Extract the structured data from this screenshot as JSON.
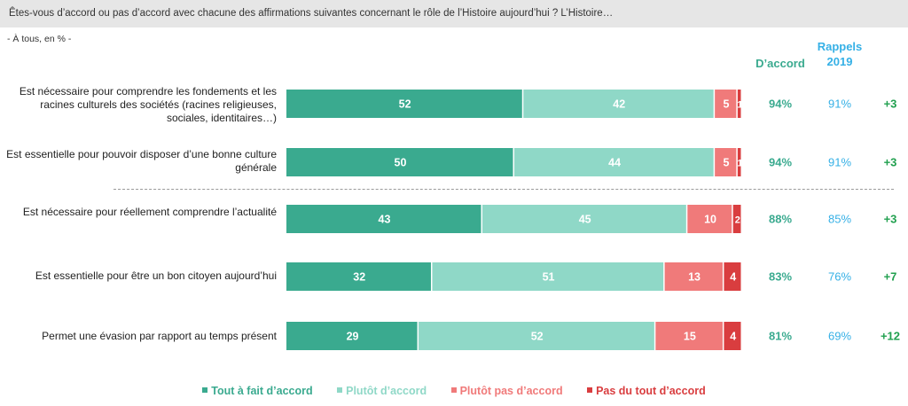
{
  "header": {
    "question": "Êtes-vous d’accord ou pas d’accord avec chacune des affirmations suivantes concernant le rôle de l’Histoire aujourd’hui ? L’Histoire…",
    "scope": "- À tous, en % -"
  },
  "columns": {
    "accord": "D’accord",
    "rappels_line1": "Rappels",
    "rappels_line2": "2019"
  },
  "chart_data": {
    "type": "bar",
    "orientation": "horizontal",
    "stacked": true,
    "categories": [
      "Est nécessaire pour comprendre les fondements et les racines culturels des sociétés (racines religieuses, sociales, identitaires…)",
      "Est essentielle pour pouvoir disposer d’une bonne culture générale",
      "Est nécessaire pour réellement comprendre l’actualité",
      "Est essentielle pour être un bon citoyen aujourd’hui",
      "Permet une évasion par rapport au temps présent"
    ],
    "series": [
      {
        "name": "Tout à fait d’accord",
        "color": "#3aaa8f",
        "values": [
          52,
          50,
          43,
          32,
          29
        ]
      },
      {
        "name": "Plutôt d’accord",
        "color": "#8fd8c7",
        "values": [
          42,
          44,
          45,
          51,
          52
        ]
      },
      {
        "name": "Plutôt pas d’accord",
        "color": "#f07a7a",
        "values": [
          5,
          5,
          10,
          13,
          15
        ]
      },
      {
        "name": "Pas du tout d’accord",
        "color": "#d93d3f",
        "values": [
          1,
          1,
          2,
          4,
          4
        ]
      }
    ],
    "xlim": [
      0,
      100
    ],
    "accord_total": [
      "94%",
      "94%",
      "88%",
      "83%",
      "81%"
    ],
    "rappels_2019": [
      "91%",
      "91%",
      "85%",
      "76%",
      "69%"
    ],
    "evolution": [
      "+3",
      "+3",
      "+3",
      "+7",
      "+12"
    ],
    "legend_position": "bottom"
  },
  "colors": {
    "accord": "#3aaa8f",
    "rappels": "#35b0e6",
    "evolution": "#21a04f"
  }
}
